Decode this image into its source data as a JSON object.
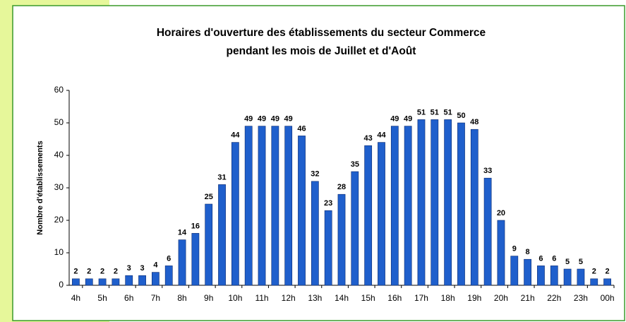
{
  "chart_data": {
    "type": "bar",
    "title": [
      "Horaires d'ouverture des établissements du secteur Commerce",
      "pendant les mois de Juillet et d'Août"
    ],
    "y_label": "Nombre d'établissements",
    "categories": [
      "4h",
      null,
      "5h",
      null,
      "6h",
      null,
      "7h",
      null,
      "8h",
      null,
      "9h",
      null,
      "10h",
      null,
      "11h",
      null,
      "12h",
      null,
      "13h",
      null,
      "14h",
      null,
      "15h",
      null,
      "16h",
      null,
      "17h",
      null,
      "18h",
      null,
      "19h",
      null,
      "20h",
      null,
      "21h",
      null,
      "22h",
      null,
      "23h",
      null,
      "00h"
    ],
    "values": [
      2,
      2,
      2,
      2,
      3,
      3,
      4,
      6,
      14,
      16,
      25,
      31,
      44,
      49,
      49,
      49,
      49,
      46,
      32,
      23,
      28,
      35,
      43,
      44,
      49,
      49,
      51,
      51,
      51,
      50,
      48,
      33,
      20,
      9,
      8,
      6,
      6,
      5,
      5,
      2,
      2
    ],
    "color": "#1f5fcc",
    "ylim": [
      0,
      60
    ],
    "yticks": [
      0,
      10,
      20,
      30,
      40,
      50,
      60
    ],
    "grid": false
  }
}
